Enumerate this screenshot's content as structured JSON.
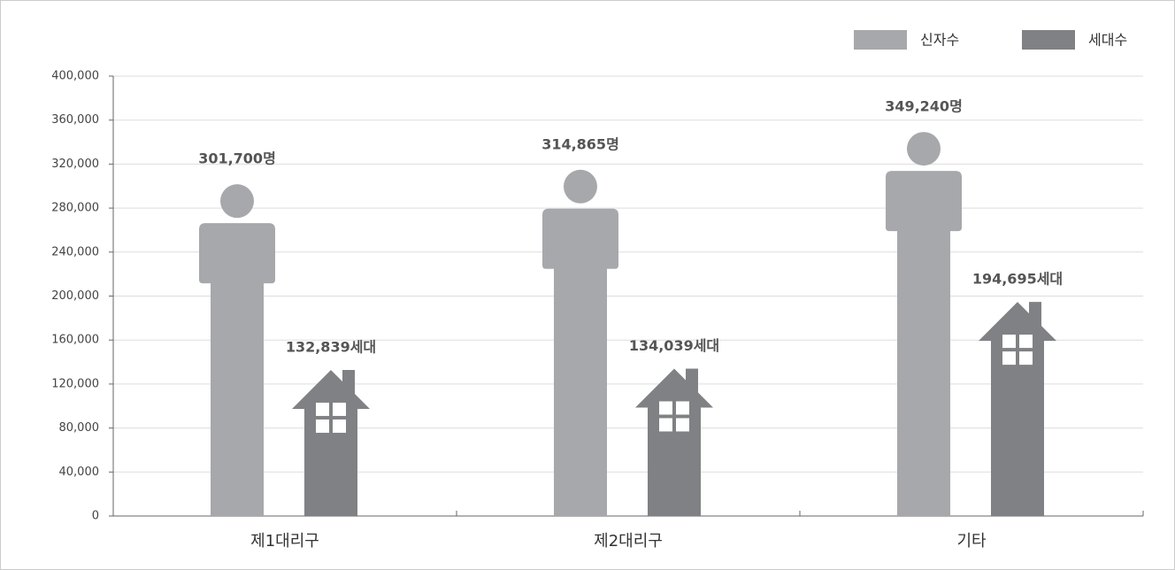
{
  "chart_data": {
    "type": "pictogram-bar",
    "categories": [
      "제1대리구",
      "제2대리구",
      "기타"
    ],
    "series": [
      {
        "name": "신자수",
        "color": "#a7a8ab",
        "values": [
          301700,
          314865,
          349240
        ],
        "value_labels": [
          "301,700명",
          "314,865명",
          "349,240명"
        ]
      },
      {
        "name": "세대수",
        "color": "#808184",
        "values": [
          132839,
          134039,
          194695
        ],
        "value_labels": [
          "132,839세대",
          "134,039세대",
          "194,695세대"
        ]
      }
    ],
    "ylim": [
      0,
      400000
    ],
    "yticks": [
      0,
      {
        "value": 40000,
        "label": "40,000"
      },
      {
        "value": 80000,
        "label": "80,000"
      },
      {
        "value": 120000,
        "label": "120,000"
      },
      {
        "value": 160000,
        "label": "160,000"
      },
      {
        "value": 200000,
        "label": "200,000"
      },
      {
        "value": 240000,
        "label": "240,000"
      },
      {
        "value": 280000,
        "label": "280,000"
      },
      {
        "value": 320000,
        "label": "320,000"
      },
      {
        "value": 360000,
        "label": "360,000"
      },
      {
        "value": 400000,
        "label": "400,000"
      }
    ],
    "grid": true,
    "legend": "top-right"
  }
}
